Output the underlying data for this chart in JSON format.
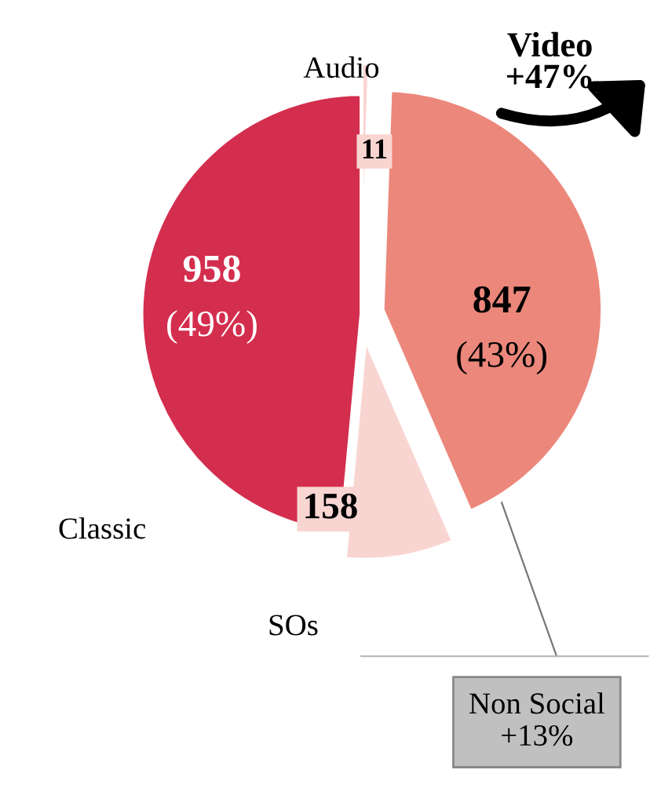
{
  "chart_data": {
    "type": "pie",
    "categories": [
      "Audio",
      null,
      "SOs",
      "Classic"
    ],
    "values": [
      11,
      847,
      158,
      958
    ],
    "colors": [
      "#f9d5d2",
      "#ec877b",
      "#f9d5d2",
      "#d42e4e"
    ],
    "value_labels": [
      "11",
      "847\n(43%)",
      "158",
      "958\n(49%)"
    ],
    "annotations": [
      "Video\n+47%",
      "Non Social\n+13%"
    ],
    "legend": false
  }
}
